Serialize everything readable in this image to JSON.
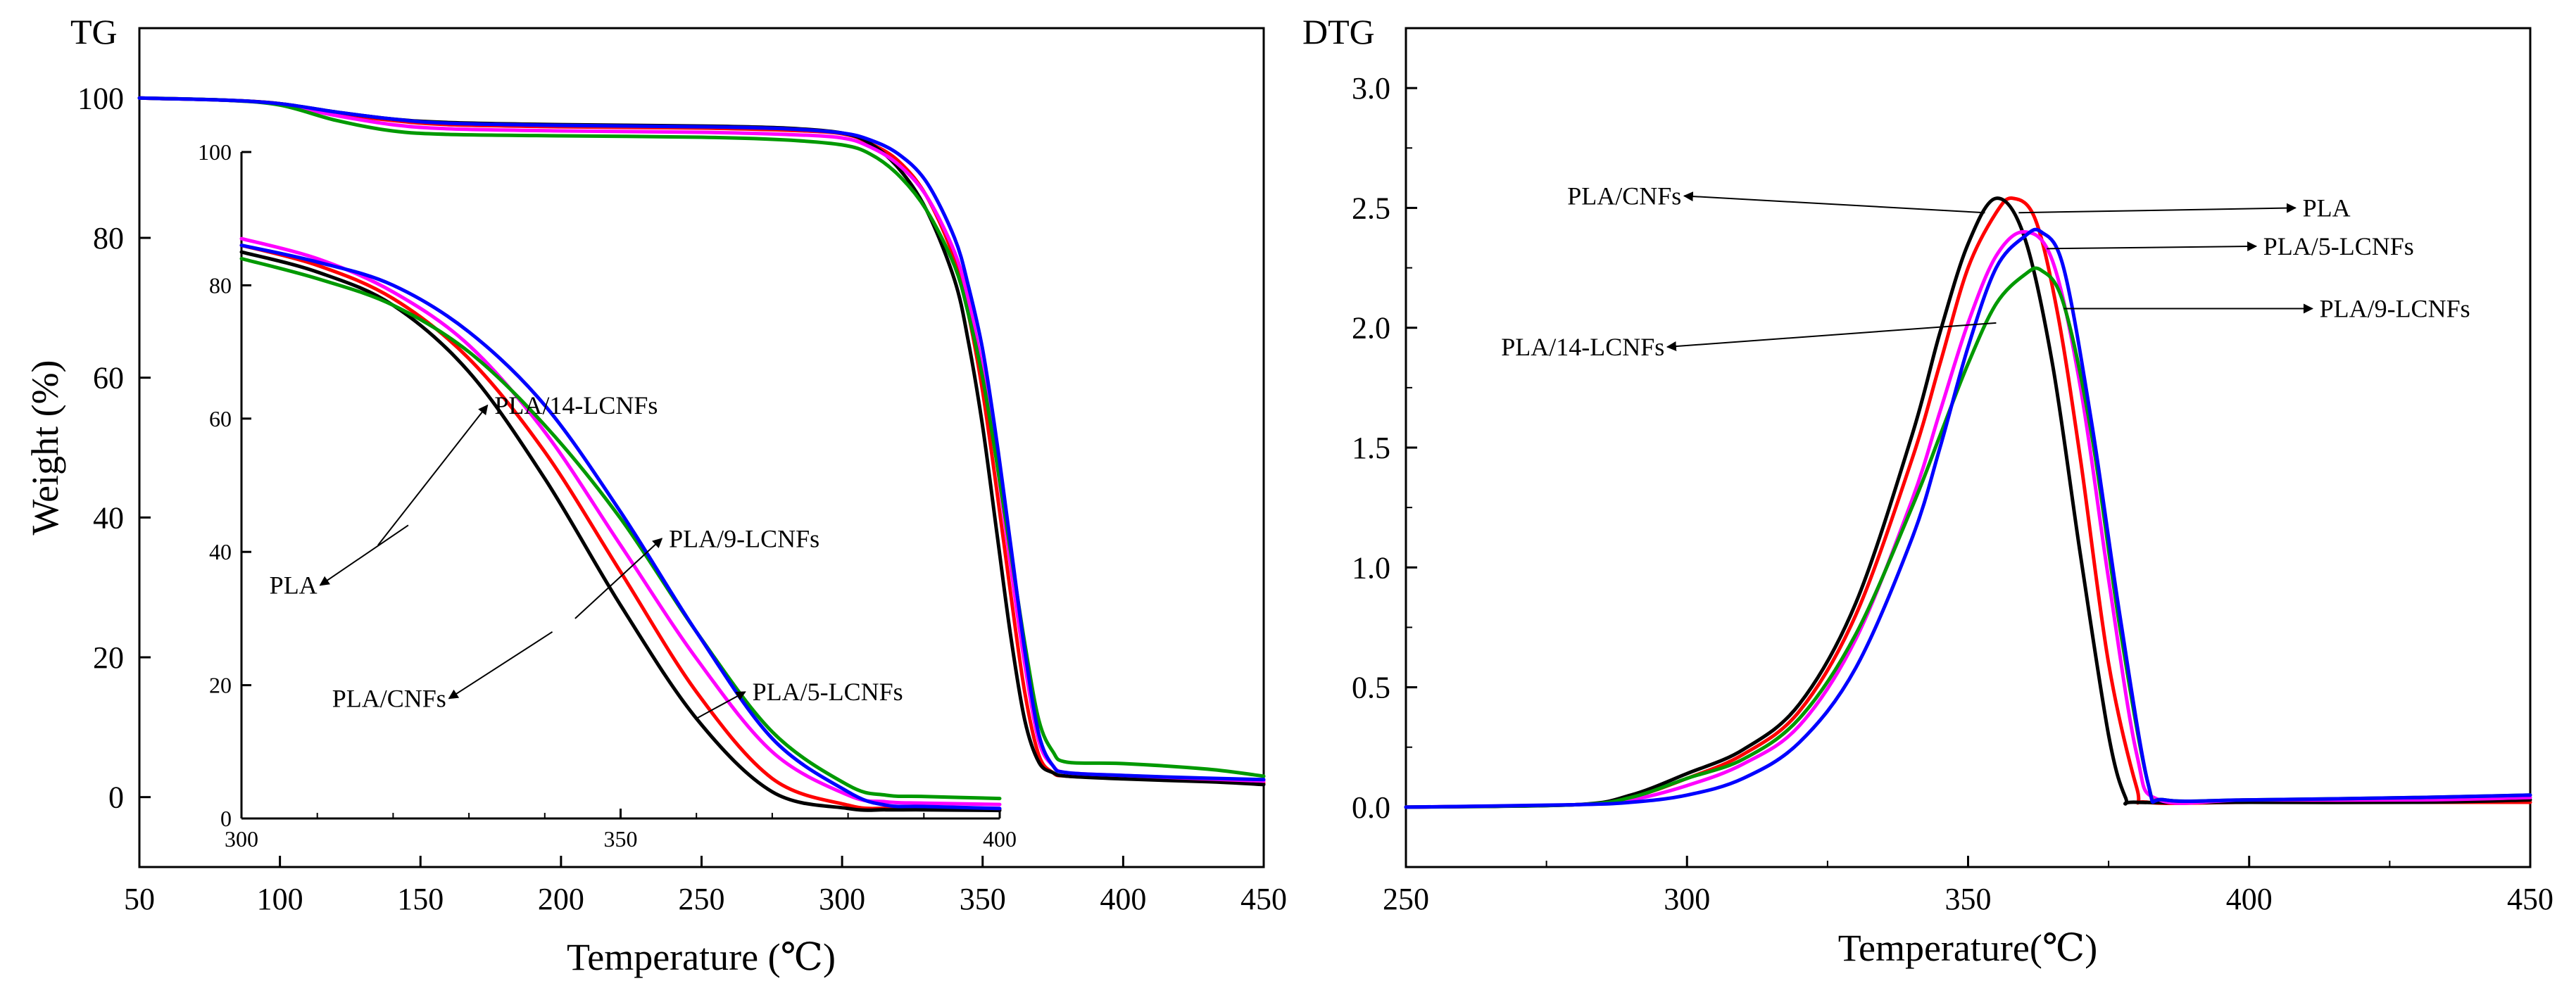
{
  "chart_data": [
    {
      "type": "line",
      "panel": "TG",
      "panel_label": "TG",
      "xlabel": "Temperature (℃)",
      "ylabel": "Weight (%)",
      "xlim": [
        50,
        450
      ],
      "ylim": [
        -10,
        110
      ],
      "xticks": [
        50,
        100,
        150,
        200,
        250,
        300,
        350,
        400,
        450
      ],
      "yticks": [
        0,
        20,
        40,
        60,
        80,
        100
      ],
      "grid": false,
      "series": [
        {
          "name": "PLA",
          "color": "#ff0000",
          "x": [
            50,
            80,
            100,
            120,
            140,
            160,
            200,
            250,
            280,
            300,
            310,
            320,
            330,
            340,
            345,
            350,
            355,
            360,
            365,
            370,
            375,
            380,
            400,
            430,
            450
          ],
          "y": [
            100,
            99.7,
            99.2,
            97.8,
            96.8,
            96.2,
            95.9,
            95.7,
            95.4,
            94.9,
            93.5,
            91,
            86,
            77,
            69,
            58,
            44,
            29,
            15,
            6,
            3.5,
            3,
            2.7,
            2.3,
            2
          ]
        },
        {
          "name": "PLA/CNFs",
          "color": "#000000",
          "x": [
            50,
            80,
            100,
            120,
            140,
            160,
            200,
            250,
            280,
            300,
            310,
            320,
            330,
            340,
            345,
            350,
            355,
            360,
            365,
            370,
            375,
            380,
            400,
            430,
            450
          ],
          "y": [
            100,
            99.7,
            99.2,
            98,
            97,
            96.5,
            96.2,
            96,
            95.7,
            95,
            93.5,
            90,
            84,
            74,
            65,
            53,
            38,
            23,
            11,
            5,
            3.5,
            3,
            2.6,
            2.2,
            1.8
          ]
        },
        {
          "name": "PLA/5-LCNFs",
          "color": "#ff00ff",
          "x": [
            50,
            80,
            100,
            120,
            140,
            160,
            200,
            250,
            280,
            300,
            310,
            320,
            330,
            340,
            345,
            350,
            355,
            360,
            365,
            370,
            375,
            380,
            400,
            430,
            450
          ],
          "y": [
            100,
            99.7,
            99.1,
            97.5,
            96.2,
            95.6,
            95.3,
            95.1,
            94.8,
            94.3,
            93,
            90.5,
            86,
            78,
            71,
            61,
            48,
            33,
            19,
            8,
            4.5,
            3.5,
            3.1,
            2.6,
            2.3
          ]
        },
        {
          "name": "PLA/9-LCNFs",
          "color": "#009900",
          "x": [
            50,
            80,
            100,
            120,
            140,
            160,
            200,
            250,
            280,
            300,
            310,
            320,
            330,
            340,
            345,
            350,
            355,
            360,
            365,
            370,
            375,
            380,
            400,
            430,
            450
          ],
          "y": [
            100,
            99.7,
            99,
            96.8,
            95.3,
            94.8,
            94.6,
            94.4,
            94,
            93.3,
            92,
            89,
            84,
            76,
            69,
            60,
            48,
            35,
            22,
            11,
            6.5,
            5,
            4.8,
            4,
            3
          ]
        },
        {
          "name": "PLA/14-LCNFs",
          "color": "#0000ff",
          "x": [
            50,
            80,
            100,
            120,
            140,
            160,
            200,
            250,
            280,
            300,
            310,
            320,
            330,
            340,
            345,
            350,
            355,
            360,
            365,
            370,
            375,
            380,
            400,
            430,
            450
          ],
          "y": [
            100,
            99.7,
            99.2,
            98,
            97,
            96.4,
            96.1,
            95.9,
            95.6,
            95,
            94,
            92,
            88,
            80,
            73,
            64,
            51,
            36,
            21,
            9,
            4.5,
            3.5,
            3.1,
            2.7,
            2.5
          ]
        }
      ],
      "inset": {
        "xlim": [
          300,
          400
        ],
        "ylim": [
          0,
          100
        ],
        "xticks": [
          300,
          350,
          400
        ],
        "yticks": [
          0,
          20,
          40,
          60,
          80,
          100
        ],
        "series": [
          {
            "name": "PLA",
            "color": "#ff0000",
            "x": [
              300,
              310,
              320,
              330,
              340,
              350,
              360,
              370,
              380,
              385,
              390,
              400
            ],
            "y": [
              86,
              83,
              78,
              69,
              55,
              37,
              19,
              6,
              2,
              1.5,
              1.5,
              1.4
            ]
          },
          {
            "name": "PLA/CNFs",
            "color": "#000000",
            "x": [
              300,
              310,
              320,
              330,
              340,
              350,
              360,
              370,
              380,
              385,
              390,
              400
            ],
            "y": [
              85,
              82,
              77,
              67,
              51,
              32,
              15,
              4,
              1.5,
              1.3,
              1.3,
              1.2
            ]
          },
          {
            "name": "PLA/5-LCNFs",
            "color": "#ff00ff",
            "x": [
              300,
              310,
              320,
              330,
              340,
              350,
              360,
              370,
              380,
              385,
              390,
              400
            ],
            "y": [
              87,
              84,
              79,
              71,
              58,
              41,
              24,
              10,
              3.5,
              2.5,
              2.3,
              2.1
            ]
          },
          {
            "name": "PLA/9-LCNFs",
            "color": "#009900",
            "x": [
              300,
              310,
              320,
              330,
              340,
              350,
              360,
              370,
              380,
              385,
              390,
              400
            ],
            "y": [
              84,
              81,
              77,
              70,
              59,
              45,
              28,
              13,
              5,
              3.5,
              3.3,
              3
            ]
          },
          {
            "name": "PLA/14-LCNFs",
            "color": "#0000ff",
            "x": [
              300,
              310,
              320,
              330,
              340,
              350,
              360,
              370,
              380,
              385,
              390,
              400
            ],
            "y": [
              86,
              83.5,
              80,
              73,
              62,
              46,
              28,
              12,
              4,
              2,
              1.8,
              1.5
            ]
          }
        ]
      },
      "annotations": [
        {
          "text": "PLA/14-LCNFs",
          "curve_x": 318,
          "curve_y": 41,
          "text_x": 333,
          "text_y": 62
        },
        {
          "text": "PLA",
          "curve_x": 322,
          "curve_y": 44,
          "text_x": 310,
          "text_y": 35
        },
        {
          "text": "PLA/9-LCNFs",
          "curve_x": 344,
          "curve_y": 30,
          "text_x": 356,
          "text_y": 42
        },
        {
          "text": "PLA/CNFs",
          "curve_x": 341,
          "curve_y": 28,
          "text_x": 327,
          "text_y": 18
        },
        {
          "text": "PLA/5-LCNFs",
          "curve_x": 360,
          "curve_y": 15,
          "text_x": 367,
          "text_y": 19
        }
      ]
    },
    {
      "type": "line",
      "panel": "DTG",
      "panel_label": "DTG",
      "xlabel": "Temperature(℃)",
      "ylabel": "",
      "xlim": [
        250,
        450
      ],
      "ylim": [
        -0.25,
        3.25
      ],
      "xticks": [
        250,
        300,
        350,
        400,
        450
      ],
      "yticks": [
        0.0,
        0.5,
        1.0,
        1.5,
        2.0,
        2.5,
        3.0
      ],
      "ytick_labels": [
        "0.0",
        "0.5",
        "1.0",
        "1.5",
        "2.0",
        "2.5",
        "3.0"
      ],
      "grid": false,
      "series": [
        {
          "name": "PLA",
          "color": "#ff0000",
          "x": [
            250,
            280,
            290,
            300,
            310,
            320,
            330,
            340,
            345,
            350,
            355,
            358,
            362,
            366,
            370,
            375,
            380,
            382,
            400,
            430,
            450
          ],
          "y": [
            0,
            0.01,
            0.04,
            0.12,
            0.22,
            0.4,
            0.8,
            1.45,
            1.85,
            2.25,
            2.48,
            2.54,
            2.45,
            2.05,
            1.45,
            0.6,
            0.08,
            0.02,
            0.02,
            0.02,
            0.02
          ]
        },
        {
          "name": "PLA/CNFs",
          "color": "#000000",
          "x": [
            250,
            280,
            290,
            300,
            310,
            320,
            330,
            340,
            345,
            350,
            355,
            360,
            365,
            370,
            375,
            378,
            380,
            400,
            430,
            450
          ],
          "y": [
            0,
            0.01,
            0.05,
            0.14,
            0.24,
            0.43,
            0.85,
            1.55,
            1.98,
            2.35,
            2.54,
            2.38,
            1.85,
            1.05,
            0.3,
            0.04,
            0.02,
            0.02,
            0.02,
            0.03
          ]
        },
        {
          "name": "PLA/5-LCNFs",
          "color": "#ff00ff",
          "x": [
            250,
            280,
            290,
            300,
            310,
            320,
            330,
            340,
            345,
            350,
            355,
            360,
            365,
            370,
            375,
            380,
            384,
            400,
            430,
            450
          ],
          "y": [
            0,
            0.01,
            0.03,
            0.09,
            0.18,
            0.34,
            0.7,
            1.28,
            1.65,
            2.02,
            2.3,
            2.4,
            2.28,
            1.75,
            0.95,
            0.22,
            0.03,
            0.03,
            0.03,
            0.04
          ]
        },
        {
          "name": "PLA/9-LCNFs",
          "color": "#009900",
          "x": [
            250,
            280,
            290,
            300,
            310,
            320,
            330,
            340,
            345,
            350,
            355,
            360,
            363,
            367,
            372,
            377,
            382,
            385,
            400,
            430,
            450
          ],
          "y": [
            0,
            0.01,
            0.04,
            0.12,
            0.2,
            0.37,
            0.72,
            1.25,
            1.55,
            1.85,
            2.1,
            2.22,
            2.24,
            2.1,
            1.55,
            0.75,
            0.1,
            0.03,
            0.03,
            0.04,
            0.05
          ]
        },
        {
          "name": "PLA/14-LCNFs",
          "color": "#0000ff",
          "x": [
            250,
            280,
            290,
            300,
            310,
            320,
            330,
            340,
            345,
            350,
            355,
            360,
            363,
            367,
            372,
            377,
            382,
            385,
            400,
            430,
            450
          ],
          "y": [
            0,
            0.01,
            0.02,
            0.05,
            0.12,
            0.27,
            0.58,
            1.12,
            1.5,
            1.92,
            2.25,
            2.38,
            2.4,
            2.25,
            1.6,
            0.8,
            0.1,
            0.03,
            0.03,
            0.04,
            0.05
          ]
        }
      ],
      "annotations": [
        {
          "text": "PLA/CNFs",
          "curve_x": 353,
          "curve_y": 2.48,
          "text_x": 299,
          "text_y": 2.55
        },
        {
          "text": "PLA",
          "curve_x": 359,
          "curve_y": 2.48,
          "text_x": 409,
          "text_y": 2.5
        },
        {
          "text": "PLA/5-LCNFs",
          "curve_x": 364,
          "curve_y": 2.33,
          "text_x": 402,
          "text_y": 2.34
        },
        {
          "text": "PLA/9-LCNFs",
          "curve_x": 367,
          "curve_y": 2.08,
          "text_x": 412,
          "text_y": 2.08
        },
        {
          "text": "PLA/14-LCNFs",
          "curve_x": 355,
          "curve_y": 2.02,
          "text_x": 296,
          "text_y": 1.92
        }
      ]
    }
  ]
}
